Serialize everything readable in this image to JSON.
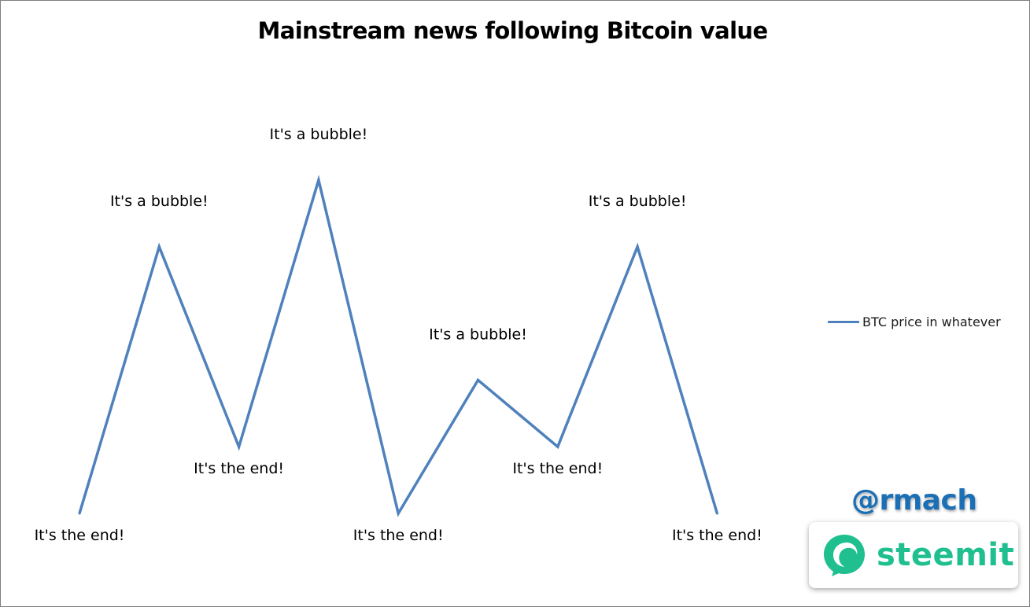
{
  "colors": {
    "series": "#4f81bd",
    "steemit_green": "#1fbf8f",
    "handle_blue": "#1b6fb5"
  },
  "chart_data": {
    "type": "line",
    "title": "Mainstream news following Bitcoin value",
    "xlabel": "",
    "ylabel": "",
    "axes_visible": false,
    "grid": false,
    "legend_position": "right",
    "x": [
      1,
      2,
      3,
      4,
      5,
      6,
      7,
      8,
      9
    ],
    "ylim": [
      0,
      5
    ],
    "series": [
      {
        "name": "BTC price in whatever",
        "values": [
          0,
          4,
          1,
          5,
          0,
          2,
          1,
          4,
          0
        ]
      }
    ],
    "annotations": [
      "It's the end!",
      "It's a bubble!",
      "It's the end!",
      "It's a bubble!",
      "It's the end!",
      "It's a bubble!",
      "It's the end!",
      "It's a bubble!",
      "It's the end!"
    ]
  },
  "watermark": {
    "handle": "@rmach",
    "brand": "steemit",
    "brand_icon": "steemit-logo-icon"
  }
}
